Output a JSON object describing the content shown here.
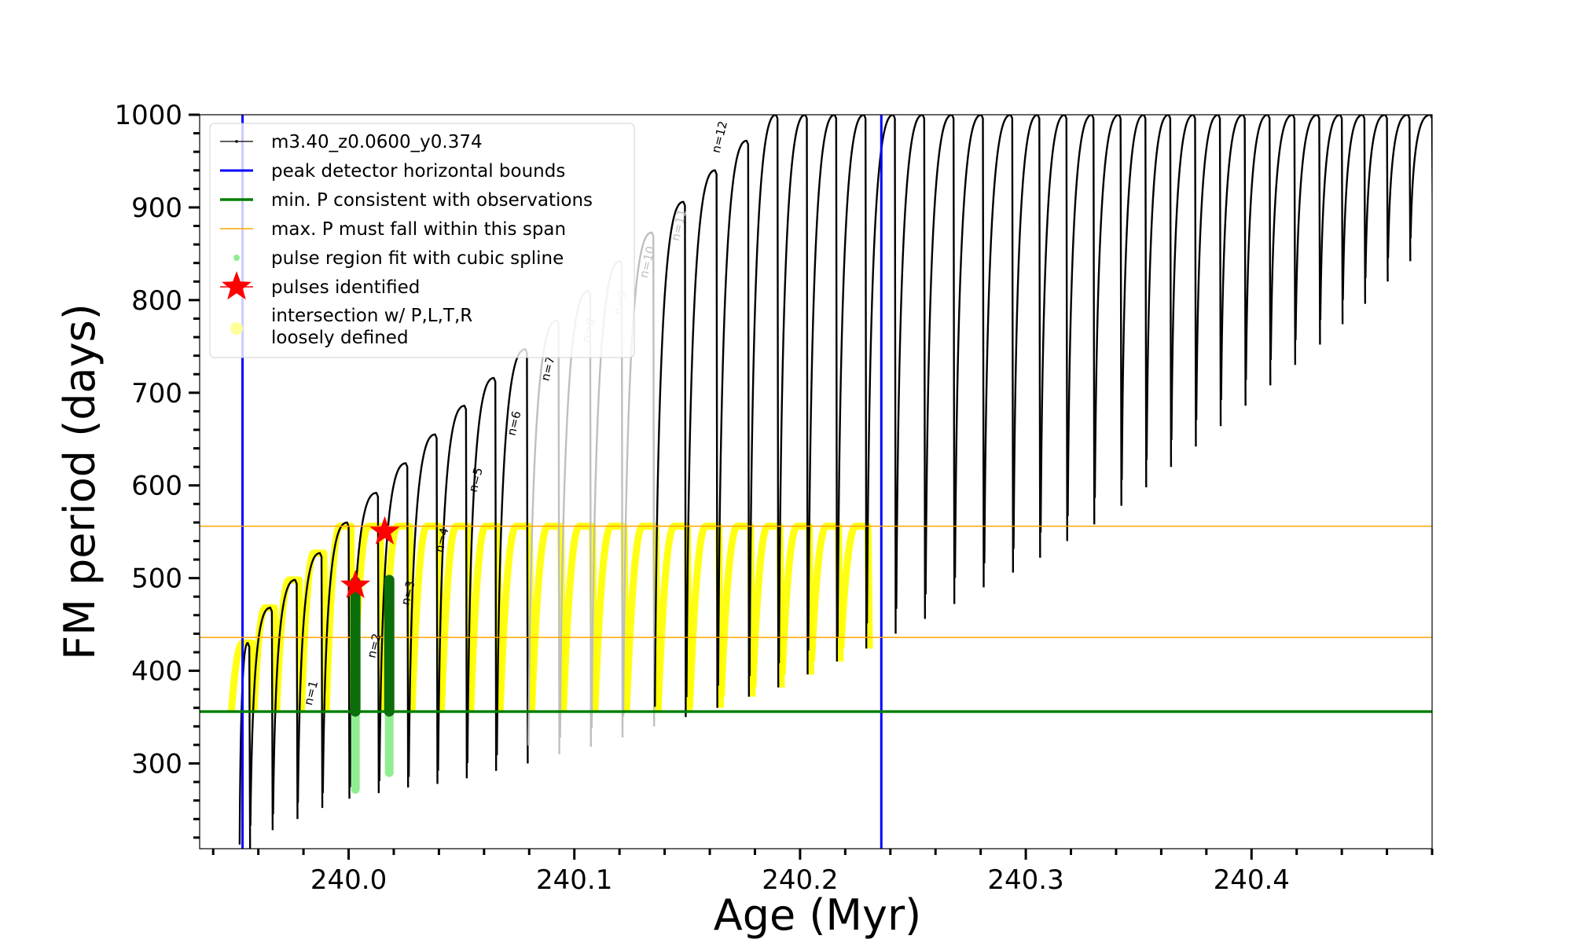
{
  "chart_data": {
    "type": "line",
    "xlabel": "Age (Myr)",
    "ylabel": "FM period (days)",
    "xlim": [
      239.934,
      240.48
    ],
    "ylim": [
      208,
      1000
    ],
    "x_ticks": [
      240.0,
      240.1,
      240.2,
      240.3,
      240.4
    ],
    "x_tick_labels": [
      "240.0",
      "240.1",
      "240.2",
      "240.3",
      "240.4"
    ],
    "y_ticks": [
      300,
      400,
      500,
      600,
      700,
      800,
      900,
      1000
    ],
    "y_tick_labels": [
      "300",
      "400",
      "500",
      "600",
      "700",
      "800",
      "900",
      "1000"
    ],
    "colors": {
      "track": "#000000",
      "bounds": "#0000ff",
      "min_p": "#008000",
      "max_p_span": "#ffa500",
      "spline": "#90ee90",
      "identified": "#ff0000",
      "intersection": "#ffff00",
      "faded_label": "#bfbfbf"
    },
    "reference_lines": {
      "peak_detector_bounds_x": [
        239.953,
        240.236
      ],
      "min_p_y": 356,
      "max_p_span_y": [
        436,
        556
      ]
    },
    "series": [
      {
        "name": "m3.40_z0.0600_y0.374",
        "pulses": [
          {
            "x": 239.956,
            "min": 208,
            "max": 430
          },
          {
            "x": 239.966,
            "min": 228,
            "max": 468
          },
          {
            "x": 239.977,
            "min": 240,
            "max": 498
          },
          {
            "x": 239.988,
            "min": 252,
            "max": 527
          },
          {
            "x": 240.0,
            "min": 262,
            "max": 560
          },
          {
            "x": 240.013,
            "min": 268,
            "max": 592
          },
          {
            "x": 240.026,
            "min": 274,
            "max": 624
          },
          {
            "x": 240.039,
            "min": 278,
            "max": 655
          },
          {
            "x": 240.052,
            "min": 284,
            "max": 686
          },
          {
            "x": 240.065,
            "min": 292,
            "max": 716
          },
          {
            "x": 240.079,
            "min": 300,
            "max": 747
          },
          {
            "x": 240.093,
            "min": 310,
            "max": 778
          },
          {
            "x": 240.107,
            "min": 318,
            "max": 810
          },
          {
            "x": 240.121,
            "min": 328,
            "max": 842
          },
          {
            "x": 240.135,
            "min": 340,
            "max": 873
          },
          {
            "x": 240.149,
            "min": 350,
            "max": 906
          },
          {
            "x": 240.163,
            "min": 360,
            "max": 940
          },
          {
            "x": 240.177,
            "min": 372,
            "max": 972
          },
          {
            "x": 240.19,
            "min": 382,
            "max": 1000
          },
          {
            "x": 240.203,
            "min": 396,
            "max": 1000
          },
          {
            "x": 240.216,
            "min": 410,
            "max": 1000
          },
          {
            "x": 240.229,
            "min": 424,
            "max": 1000
          },
          {
            "x": 240.242,
            "min": 440,
            "max": 1000
          },
          {
            "x": 240.255,
            "min": 456,
            "max": 1000
          },
          {
            "x": 240.268,
            "min": 472,
            "max": 1000
          },
          {
            "x": 240.281,
            "min": 490,
            "max": 1000
          },
          {
            "x": 240.294,
            "min": 506,
            "max": 1000
          },
          {
            "x": 240.306,
            "min": 522,
            "max": 1000
          },
          {
            "x": 240.318,
            "min": 540,
            "max": 1000
          },
          {
            "x": 240.33,
            "min": 558,
            "max": 1000
          },
          {
            "x": 240.342,
            "min": 578,
            "max": 1000
          },
          {
            "x": 240.353,
            "min": 598,
            "max": 1000
          },
          {
            "x": 240.364,
            "min": 620,
            "max": 1000
          },
          {
            "x": 240.375,
            "min": 642,
            "max": 1000
          },
          {
            "x": 240.386,
            "min": 664,
            "max": 1000
          },
          {
            "x": 240.397,
            "min": 686,
            "max": 1000
          },
          {
            "x": 240.408,
            "min": 708,
            "max": 1000
          },
          {
            "x": 240.419,
            "min": 730,
            "max": 1000
          },
          {
            "x": 240.43,
            "min": 752,
            "max": 1000
          },
          {
            "x": 240.44,
            "min": 774,
            "max": 1000
          },
          {
            "x": 240.45,
            "min": 796,
            "max": 1000
          },
          {
            "x": 240.46,
            "min": 820,
            "max": 1000
          },
          {
            "x": 240.47,
            "min": 842,
            "max": 1000
          },
          {
            "x": 240.48,
            "min": 864,
            "max": 1000
          }
        ]
      },
      {
        "name": "pulse region fit with cubic spline",
        "segments": [
          {
            "x": 240.003,
            "ymin": 272,
            "ymax": 496
          },
          {
            "x": 240.018,
            "ymin": 290,
            "ymax": 498
          }
        ]
      },
      {
        "name": "pulses identified",
        "points": [
          {
            "x": 240.003,
            "y": 492
          },
          {
            "x": 240.016,
            "y": 550
          }
        ]
      }
    ],
    "pulse_labels": [
      {
        "text": "n=1",
        "x": 239.985,
        "y": 375,
        "faded": false
      },
      {
        "text": "n=2",
        "x": 240.013,
        "y": 426,
        "faded": false
      },
      {
        "text": "n=3",
        "x": 240.028,
        "y": 483,
        "faded": false
      },
      {
        "text": "n=4",
        "x": 240.043,
        "y": 540,
        "faded": false
      },
      {
        "text": "n=5",
        "x": 240.058,
        "y": 605,
        "faded": false
      },
      {
        "text": "n=6",
        "x": 240.075,
        "y": 666,
        "faded": false
      },
      {
        "text": "n=7",
        "x": 240.09,
        "y": 725,
        "faded": false
      },
      {
        "text": "n=8",
        "x": 240.108,
        "y": 766,
        "faded": true
      },
      {
        "text": "n=9",
        "x": 240.122,
        "y": 796,
        "faded": true
      },
      {
        "text": "n=10",
        "x": 240.134,
        "y": 840,
        "faded": true
      },
      {
        "text": "n=11",
        "x": 240.148,
        "y": 880,
        "faded": true
      },
      {
        "text": "n=12",
        "x": 240.166,
        "y": 975,
        "faded": false
      }
    ],
    "legend": {
      "placement": "upper-left",
      "entries": [
        {
          "label": "m3.40_z0.0600_y0.374",
          "marker": "line-dot"
        },
        {
          "label": "peak detector horizontal bounds",
          "marker": "line-blue"
        },
        {
          "label": "min. P consistent with observations",
          "marker": "line-green"
        },
        {
          "label": "max. P must fall within this span",
          "marker": "line-orange"
        },
        {
          "label": "pulse region fit with cubic spline",
          "marker": "dot-lightgreen"
        },
        {
          "label": "pulses identified",
          "marker": "star-red"
        },
        {
          "label": "intersection w/ P,L,T,R",
          "marker": "dot-yellow"
        },
        {
          "label": "loosely defined",
          "marker": "none"
        }
      ]
    }
  }
}
